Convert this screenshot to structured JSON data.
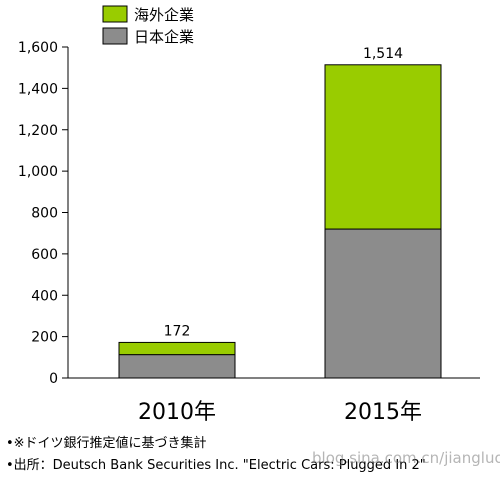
{
  "chart_data": {
    "type": "bar",
    "stacked": true,
    "categories": [
      "2010年",
      "2015年"
    ],
    "series": [
      {
        "name": "日本企業",
        "values": [
          113,
          720
        ],
        "color": "#8c8c8c"
      },
      {
        "name": "海外企業",
        "values": [
          59,
          794
        ],
        "color": "#99cc00"
      }
    ],
    "totals": [
      "172",
      "1,514"
    ],
    "ylim": [
      0,
      1600
    ],
    "yticks": [
      0,
      200,
      400,
      600,
      800,
      1000,
      1200,
      1400,
      1600
    ],
    "ytick_labels": [
      "0",
      "200",
      "400",
      "600",
      "800",
      "1,000",
      "1,200",
      "1,400",
      "1,600"
    ],
    "legend_position": "top-left",
    "grid": false
  },
  "notes": [
    "•※ドイツ銀行推定値に基づき集計",
    "•出所：Deutsch Bank Securities Inc. \"Electric Cars: Plugged In 2\""
  ],
  "watermark": "blog.sina.com.cn/jiangluogu"
}
